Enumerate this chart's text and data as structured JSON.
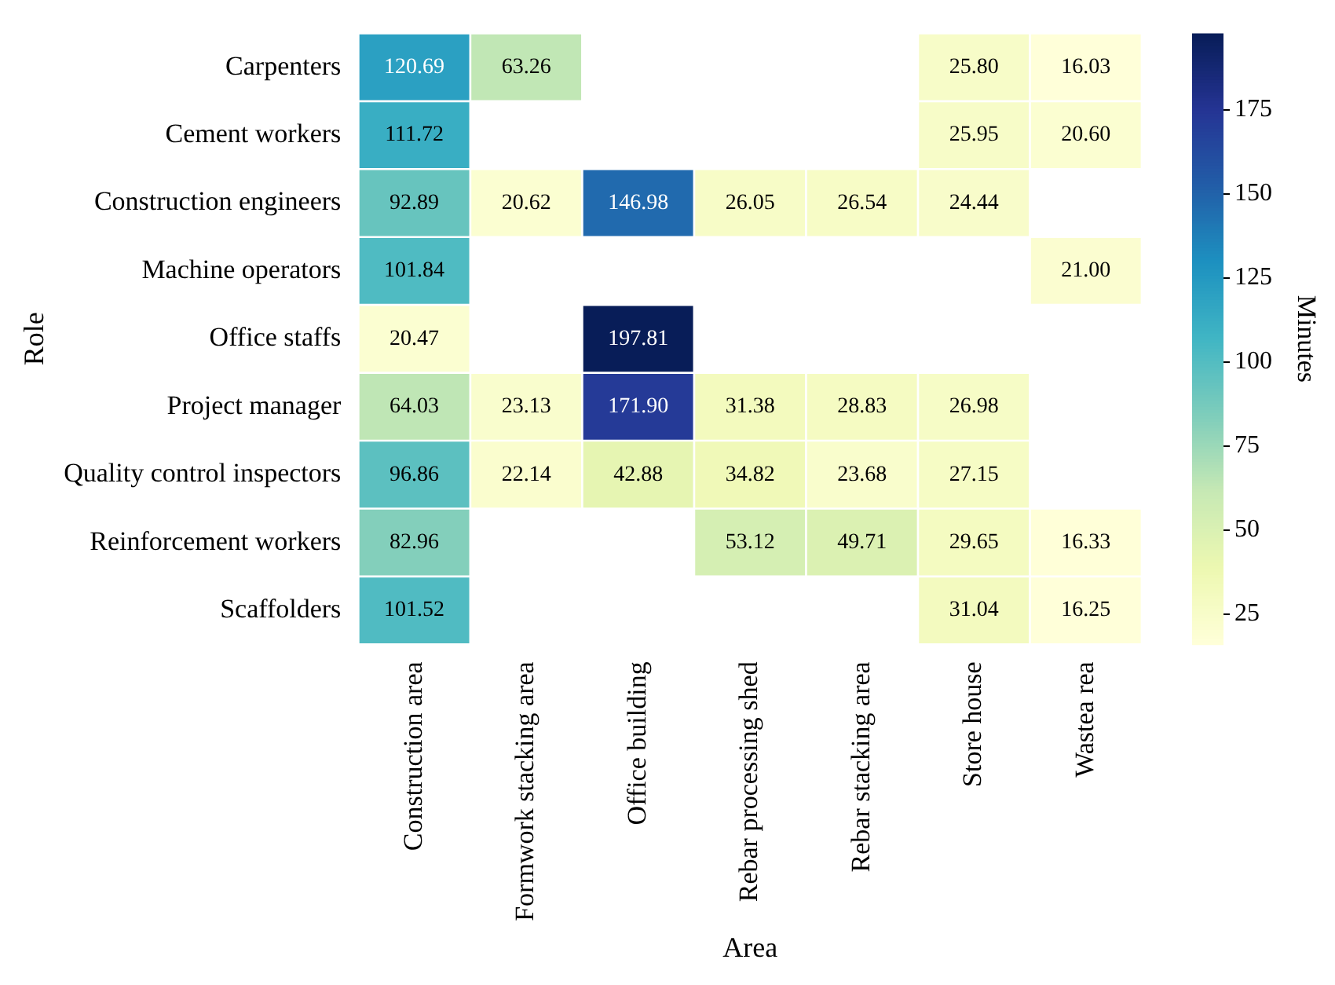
{
  "chart_data": {
    "type": "heatmap",
    "xlabel": "Area",
    "ylabel": "Role",
    "clabel": "Minutes",
    "categories": [
      "Construction area",
      "Formwork stacking area",
      "Office building",
      "Rebar processing shed",
      "Rebar stacking area",
      "Store house",
      "Wastea rea"
    ],
    "y_categories": [
      "Carpenters",
      "Cement workers",
      "Construction engineers",
      "Machine operators",
      "Office staffs",
      "Project manager",
      "Quality control inspectors",
      "Reinforcement workers",
      "Scaffolders"
    ],
    "cells": [
      [
        120.69,
        63.26,
        null,
        null,
        null,
        25.8,
        16.03
      ],
      [
        111.72,
        null,
        null,
        null,
        null,
        25.95,
        20.6
      ],
      [
        92.89,
        20.62,
        146.98,
        26.05,
        26.54,
        24.44,
        null
      ],
      [
        101.84,
        null,
        null,
        null,
        null,
        null,
        21.0
      ],
      [
        20.47,
        null,
        197.81,
        null,
        null,
        null,
        null
      ],
      [
        64.03,
        23.13,
        171.9,
        31.38,
        28.83,
        26.98,
        null
      ],
      [
        96.86,
        22.14,
        42.88,
        34.82,
        23.68,
        27.15,
        null
      ],
      [
        82.96,
        null,
        null,
        53.12,
        49.71,
        29.65,
        16.33
      ],
      [
        101.52,
        null,
        null,
        null,
        null,
        31.04,
        16.25
      ]
    ],
    "cell_labels": [
      [
        "120.69",
        "63.26",
        null,
        null,
        null,
        "25.80",
        "16.03"
      ],
      [
        "111.72",
        null,
        null,
        null,
        null,
        "25.95",
        "20.60"
      ],
      [
        "92.89",
        "20.62",
        "146.98",
        "26.05",
        "26.54",
        "24.44",
        null
      ],
      [
        "101.84",
        null,
        null,
        null,
        null,
        null,
        "21.00"
      ],
      [
        "20.47",
        null,
        "197.81",
        null,
        null,
        null,
        null
      ],
      [
        "64.03",
        "23.13",
        "171.90",
        "31.38",
        "28.83",
        "26.98",
        null
      ],
      [
        "96.86",
        "22.14",
        "42.88",
        "34.82",
        "23.68",
        "27.15",
        null
      ],
      [
        "82.96",
        null,
        null,
        "53.12",
        "49.71",
        "29.65",
        "16.33"
      ],
      [
        "101.52",
        null,
        null,
        null,
        null,
        "31.04",
        "16.25"
      ]
    ],
    "clim": [
      16.03,
      197.81
    ],
    "cticks": [
      25,
      50,
      75,
      100,
      125,
      150,
      175
    ],
    "data_labels": true
  }
}
